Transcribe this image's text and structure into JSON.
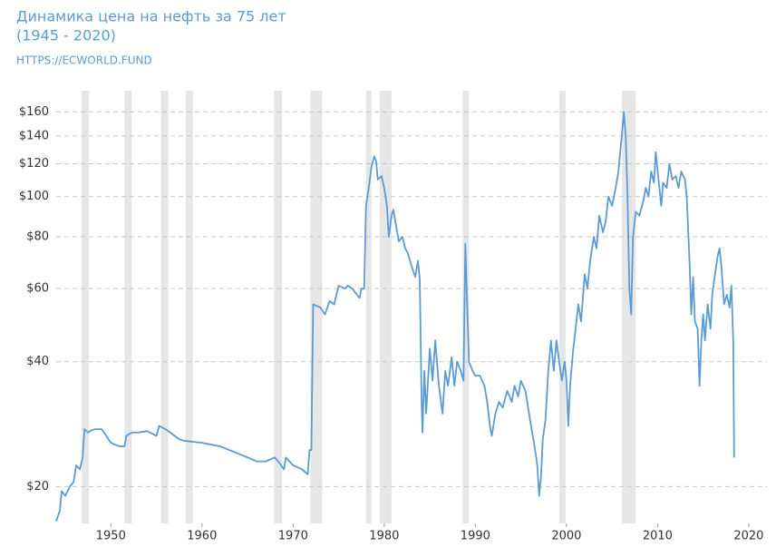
{
  "chart_data": {
    "type": "line",
    "title": "Динамика цена на нефть за 75 лет",
    "subtitle": "(1945 - 2020)",
    "source": "HTTPS://ECWORLD.FUND",
    "log_y": true,
    "grid": true,
    "color": "#5b9bd5",
    "band_color": "#e6e6e6",
    "xlim": [
      1944,
      2022
    ],
    "ylim": [
      16.3,
      180
    ],
    "xticks": [
      1950,
      1960,
      1970,
      1980,
      1990,
      2000,
      2010,
      2020
    ],
    "yticks": [
      {
        "value": 20,
        "label": "$20"
      },
      {
        "value": 40,
        "label": "$40"
      },
      {
        "value": 60,
        "label": "$60"
      },
      {
        "value": 80,
        "label": "$80"
      },
      {
        "value": 100,
        "label": "$100"
      },
      {
        "value": 120,
        "label": "$120"
      },
      {
        "value": 140,
        "label": "$140"
      },
      {
        "value": 160,
        "label": "$160"
      }
    ],
    "recessions": [
      [
        1946.8,
        1947.6
      ],
      [
        1951.5,
        1952.3
      ],
      [
        1955.5,
        1956.3
      ],
      [
        1958.2,
        1959.0
      ],
      [
        1967.9,
        1968.8
      ],
      [
        1971.9,
        1973.2
      ],
      [
        1978.0,
        1978.6
      ],
      [
        1979.5,
        1980.8
      ],
      [
        1988.6,
        1989.3
      ],
      [
        1999.2,
        1999.9
      ],
      [
        2006.1,
        2007.6
      ]
    ],
    "x": [
      1944.0,
      1944.4,
      1944.6,
      1945.0,
      1945.5,
      1945.9,
      1946.2,
      1946.6,
      1946.9,
      1947.1,
      1947.5,
      1947.8,
      1948.3,
      1949.0,
      1949.5,
      1950.0,
      1950.5,
      1951.0,
      1951.5,
      1951.7,
      1952.3,
      1953,
      1954,
      1955,
      1955.3,
      1956,
      1956.5,
      1957,
      1957.5,
      1958,
      1960,
      1962,
      1964,
      1965,
      1966,
      1967,
      1968,
      1968.5,
      1969,
      1969.2,
      1970,
      1971,
      1971.6,
      1971.8,
      1972.0,
      1972.2,
      1973,
      1973.5,
      1974,
      1974.5,
      1975,
      1975.7,
      1976,
      1976.5,
      1977,
      1977.3,
      1977.5,
      1977.8,
      1978,
      1978.3,
      1978.6,
      1978.9,
      1979.1,
      1979.3,
      1979.7,
      1980,
      1980.3,
      1980.5,
      1980.8,
      1981,
      1981.3,
      1981.6,
      1982,
      1982.3,
      1982.6,
      1983,
      1983.4,
      1983.7,
      1983.9,
      1984.1,
      1984.2,
      1984.4,
      1984.6,
      1985,
      1985.3,
      1985.6,
      1986,
      1986.4,
      1986.7,
      1987,
      1987.4,
      1987.7,
      1988,
      1988.4,
      1988.7,
      1988.9,
      1989.1,
      1989.3,
      1989.7,
      1990,
      1990.5,
      1991,
      1991.3,
      1991.6,
      1991.8,
      1992.2,
      1992.6,
      1993,
      1993.5,
      1994,
      1994.3,
      1994.7,
      1995,
      1995.5,
      1996,
      1996.5,
      1996.8,
      1997.0,
      1997.2,
      1997.4,
      1997.7,
      1998,
      1998.3,
      1998.6,
      1998.9,
      1999.2,
      1999.5,
      1999.8,
      2000,
      2000.2,
      2000.4,
      2000.7,
      2001,
      2001.3,
      2001.6,
      2002,
      2002.3,
      2002.6,
      2003,
      2003.3,
      2003.6,
      2004,
      2004.3,
      2004.6,
      2005,
      2005.4,
      2005.7,
      2006,
      2006.3,
      2006.5,
      2006.7,
      2006.9,
      2007.1,
      2007.3,
      2007.6,
      2008,
      2008.4,
      2008.7,
      2009,
      2009.3,
      2009.6,
      2009.8,
      2010.1,
      2010.4,
      2010.6,
      2011,
      2011.3,
      2011.6,
      2012,
      2012.3,
      2012.6,
      2013,
      2013.2,
      2013.5,
      2013.7,
      2013.9,
      2014.1,
      2014.4,
      2014.6,
      2014.8,
      2015,
      2015.2,
      2015.5,
      2015.8,
      2016,
      2016.3,
      2016.6,
      2016.8,
      2017,
      2017.3,
      2017.6,
      2017.9,
      2018.1,
      2018.3,
      2018.4
    ],
    "values": [
      16.5,
      17.5,
      19.5,
      19,
      20,
      20.5,
      22.5,
      22,
      23.5,
      27.5,
      27,
      27.3,
      27.5,
      27.5,
      26.5,
      25.5,
      25.2,
      25,
      25,
      26.5,
      27,
      27,
      27.2,
      26.5,
      28,
      27.5,
      27,
      26.5,
      26,
      25.8,
      25.5,
      25,
      24,
      23.5,
      23,
      23,
      23.5,
      22.8,
      22,
      23.5,
      22.5,
      22,
      21.4,
      24.5,
      24.5,
      55,
      54,
      52,
      56,
      55,
      61,
      60,
      61,
      60,
      58,
      57,
      60,
      60,
      95,
      105,
      118,
      125,
      122,
      110,
      112,
      105,
      95,
      80,
      90,
      93,
      85,
      78,
      80,
      75,
      73,
      68,
      64,
      70,
      63,
      32,
      27,
      38,
      30,
      43,
      36,
      45,
      35,
      30,
      38,
      35,
      41,
      35,
      40,
      38,
      36,
      77,
      55,
      40,
      38,
      37,
      37,
      35,
      32,
      28,
      26.5,
      30,
      32,
      31,
      34,
      32,
      35,
      33,
      36,
      34,
      29,
      25,
      22.5,
      19,
      21,
      26,
      29,
      38,
      45,
      38,
      45,
      40,
      36,
      40,
      36,
      28,
      35,
      42,
      48,
      55,
      50,
      65,
      60,
      70,
      80,
      75,
      90,
      82,
      87,
      100,
      95,
      105,
      115,
      135,
      160,
      140,
      100,
      60,
      52,
      80,
      92,
      90,
      97,
      105,
      100,
      115,
      108,
      128,
      110,
      95,
      108,
      105,
      120,
      110,
      112,
      105,
      115,
      110,
      100,
      70,
      52,
      64,
      50,
      48,
      35,
      45,
      52,
      45,
      55,
      48,
      58,
      65,
      72,
      75,
      68,
      55,
      58,
      54,
      61,
      45,
      23.5
    ]
  }
}
